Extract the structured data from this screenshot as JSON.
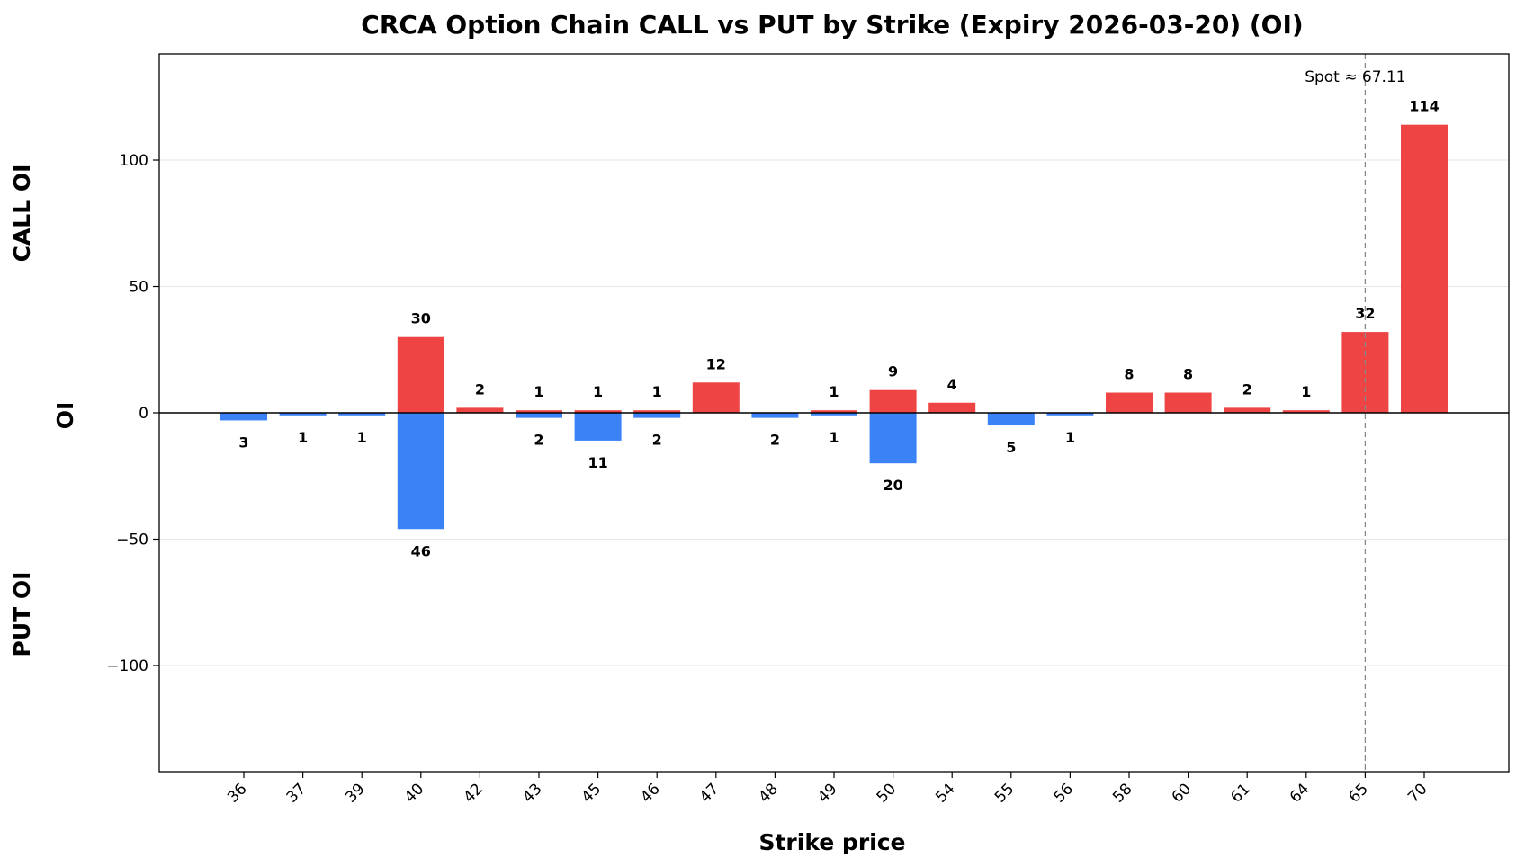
{
  "chart_data": {
    "type": "bar",
    "title": "CRCA Option Chain CALL vs PUT by Strike (Expiry 2026-03-20) (OI)",
    "xlabel": "Strike price",
    "ylabel": "OI",
    "side_labels": {
      "top": "CALL OI",
      "bottom": "PUT OI"
    },
    "categories": [
      "36",
      "37",
      "39",
      "40",
      "42",
      "43",
      "45",
      "46",
      "47",
      "48",
      "49",
      "50",
      "54",
      "55",
      "56",
      "58",
      "60",
      "61",
      "64",
      "65",
      "70"
    ],
    "series": [
      {
        "name": "CALL",
        "color": "#ef4444",
        "values": [
          0,
          0,
          0,
          30,
          2,
          1,
          1,
          1,
          12,
          0,
          1,
          9,
          4,
          0,
          0,
          8,
          8,
          2,
          1,
          32,
          114
        ]
      },
      {
        "name": "PUT",
        "color": "#3b82f6",
        "values": [
          -3,
          -1,
          -1,
          -46,
          0,
          -2,
          -11,
          -2,
          0,
          -2,
          -1,
          -20,
          0,
          -5,
          -1,
          0,
          0,
          0,
          0,
          0,
          0
        ]
      }
    ],
    "ylim": [
      -142,
      142
    ],
    "yticks": [
      -100,
      -50,
      0,
      50,
      100
    ],
    "ytick_labels": [
      "−100",
      "−50",
      "0",
      "50",
      "100"
    ],
    "grid": "horizontal",
    "spot": {
      "value": 67.11,
      "label": "Spot ≈ 67.11",
      "strike_position": "65"
    }
  }
}
